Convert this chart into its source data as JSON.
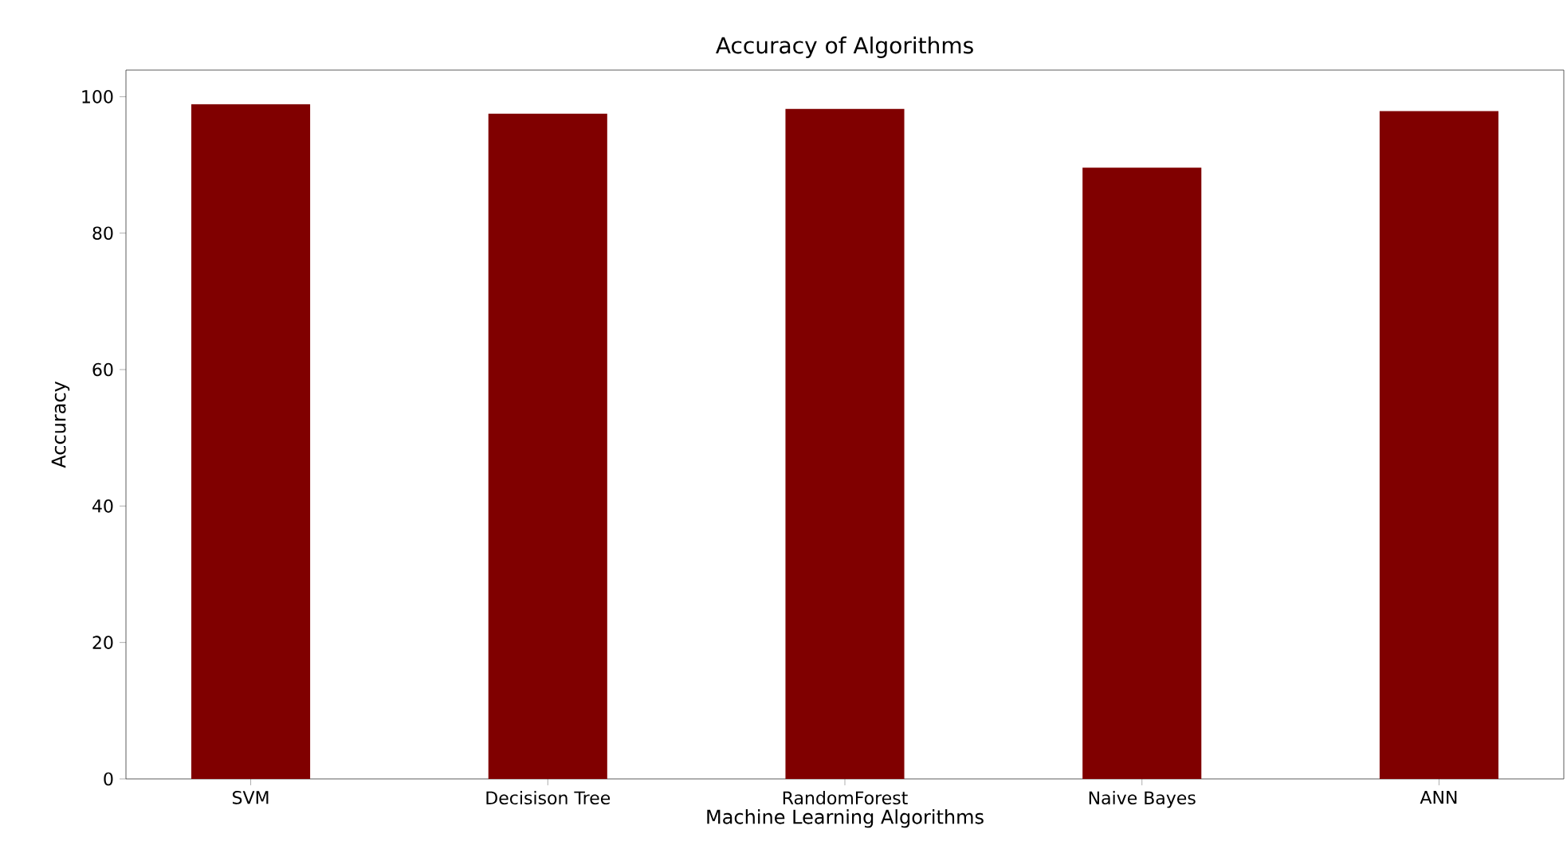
{
  "chart_data": {
    "type": "bar",
    "title": "Accuracy of Algorithms",
    "xlabel": "Machine Learning Algorithms",
    "ylabel": "Accuracy",
    "categories": [
      "SVM",
      "Decisison Tree",
      "RandomForest",
      "Naive Bayes",
      "ANN"
    ],
    "values": [
      98.9,
      97.5,
      98.2,
      89.6,
      97.9
    ],
    "color": "#800000",
    "ylim": [
      0,
      103.9
    ],
    "yticks": [
      0,
      20,
      40,
      60,
      80,
      100
    ],
    "grid": false
  }
}
